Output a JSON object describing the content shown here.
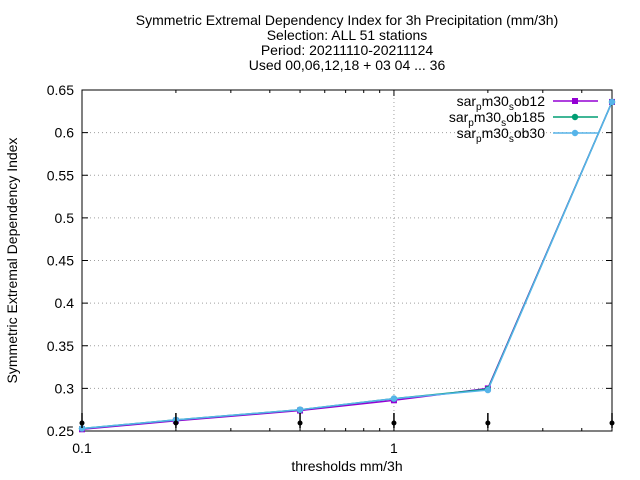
{
  "chart_data": {
    "type": "line",
    "title_lines": [
      "Symmetric Extremal Dependency Index  for 3h Precipitation (mm/3h)",
      "Selection: ALL     51 stations",
      "Period: 20211110-20211124",
      "Used 00,06,12,18 + 03 04 ... 36"
    ],
    "xlabel": "thresholds mm/3h",
    "ylabel": "Symmetric Extremal Dependency Index",
    "x_scale": "log",
    "xlim": [
      0.1,
      5
    ],
    "ylim": [
      0.25,
      0.65
    ],
    "x_ticks": [
      {
        "value": 0.1,
        "label": "0.1"
      },
      {
        "value": 1,
        "label": "1"
      }
    ],
    "y_ticks": [
      {
        "value": 0.25,
        "label": "0.25"
      },
      {
        "value": 0.3,
        "label": "0.3"
      },
      {
        "value": 0.35,
        "label": "0.35"
      },
      {
        "value": 0.4,
        "label": "0.4"
      },
      {
        "value": 0.45,
        "label": "0.45"
      },
      {
        "value": 0.5,
        "label": "0.5"
      },
      {
        "value": 0.55,
        "label": "0.55"
      },
      {
        "value": 0.6,
        "label": "0.6"
      },
      {
        "value": 0.65,
        "label": "0.65"
      }
    ],
    "grid": true,
    "legend_position": "top-right",
    "x": [
      0.1,
      0.2,
      0.5,
      1,
      2,
      5
    ],
    "series": [
      {
        "name": "sar_pm30_sob12",
        "label_parts": [
          "sar",
          "p",
          "m30",
          "s",
          "ob12"
        ],
        "color": "#9400d3",
        "marker": "square",
        "values": [
          0.252,
          0.262,
          0.274,
          0.286,
          0.3,
          0.636
        ]
      },
      {
        "name": "sar_pm30_sob185",
        "label_parts": [
          "sar",
          "p",
          "m30",
          "s",
          "ob185"
        ],
        "color": "#009e73",
        "marker": "circle",
        "values": [
          0.253,
          0.263,
          0.275,
          0.288,
          0.299,
          0.636
        ]
      },
      {
        "name": "sar_pm30_sob30",
        "label_parts": [
          "sar",
          "p",
          "m30",
          "s",
          "ob30"
        ],
        "color": "#56b4e9",
        "marker": "circle",
        "values": [
          0.253,
          0.263,
          0.275,
          0.288,
          0.298,
          0.636
        ]
      }
    ],
    "baseline_marks": [
      0.1,
      0.2,
      0.5,
      1,
      2,
      5
    ]
  }
}
